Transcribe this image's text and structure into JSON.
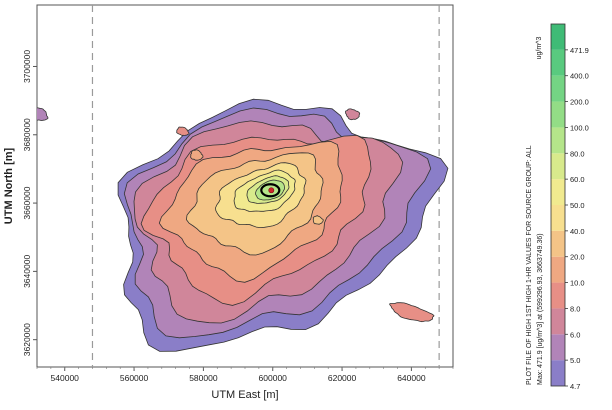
{
  "chart_data": {
    "type": "heatmap",
    "title": "",
    "xlabel": "UTM East [m]",
    "ylabel": "UTM North [m]",
    "xlim": [
      532000,
      652000
    ],
    "ylim": [
      3612000,
      3718000
    ],
    "x_ticks": [
      "540000",
      "560000",
      "580000",
      "600000",
      "620000",
      "640000"
    ],
    "y_ticks": [
      "3620000",
      "3640000",
      "3660000",
      "3680000",
      "3700000"
    ],
    "max_point": {
      "x": 599296.93,
      "y": 3663749.36,
      "value": 471.9
    },
    "dashed_boundaries_x": [
      548000,
      648000
    ],
    "levels": [
      4.7,
      5.0,
      6.0,
      8.0,
      10.0,
      20.0,
      40.0,
      50.0,
      60.0,
      80.0,
      100.0,
      200.0,
      400.0,
      471.9
    ],
    "level_labels": [
      "4.7",
      "5.0",
      "6.0",
      "8.0",
      "10.0",
      "20.0",
      "40.0",
      "50.0",
      "60.0",
      "80.0",
      "100.0",
      "200.0",
      "400.0",
      "471.9"
    ],
    "colors": [
      "#8a7ec8",
      "#b184b8",
      "#d0869a",
      "#e78f86",
      "#efa882",
      "#f4c487",
      "#f7df8f",
      "#f1ea8f",
      "#d8ea8c",
      "#b5e58a",
      "#93dd86",
      "#74d484",
      "#59ca7f",
      "#3fbb76"
    ],
    "colorbar_unit": "ug/m^3",
    "colorbar_text1": "PLOT FILE OF HIGH 1ST HIGH 1-HR VALUES FOR SOURCE GROUP: ALL",
    "colorbar_text2": "Max:  471.9  [ug/m^3]  at  (599296.93, 3663749.36)"
  }
}
